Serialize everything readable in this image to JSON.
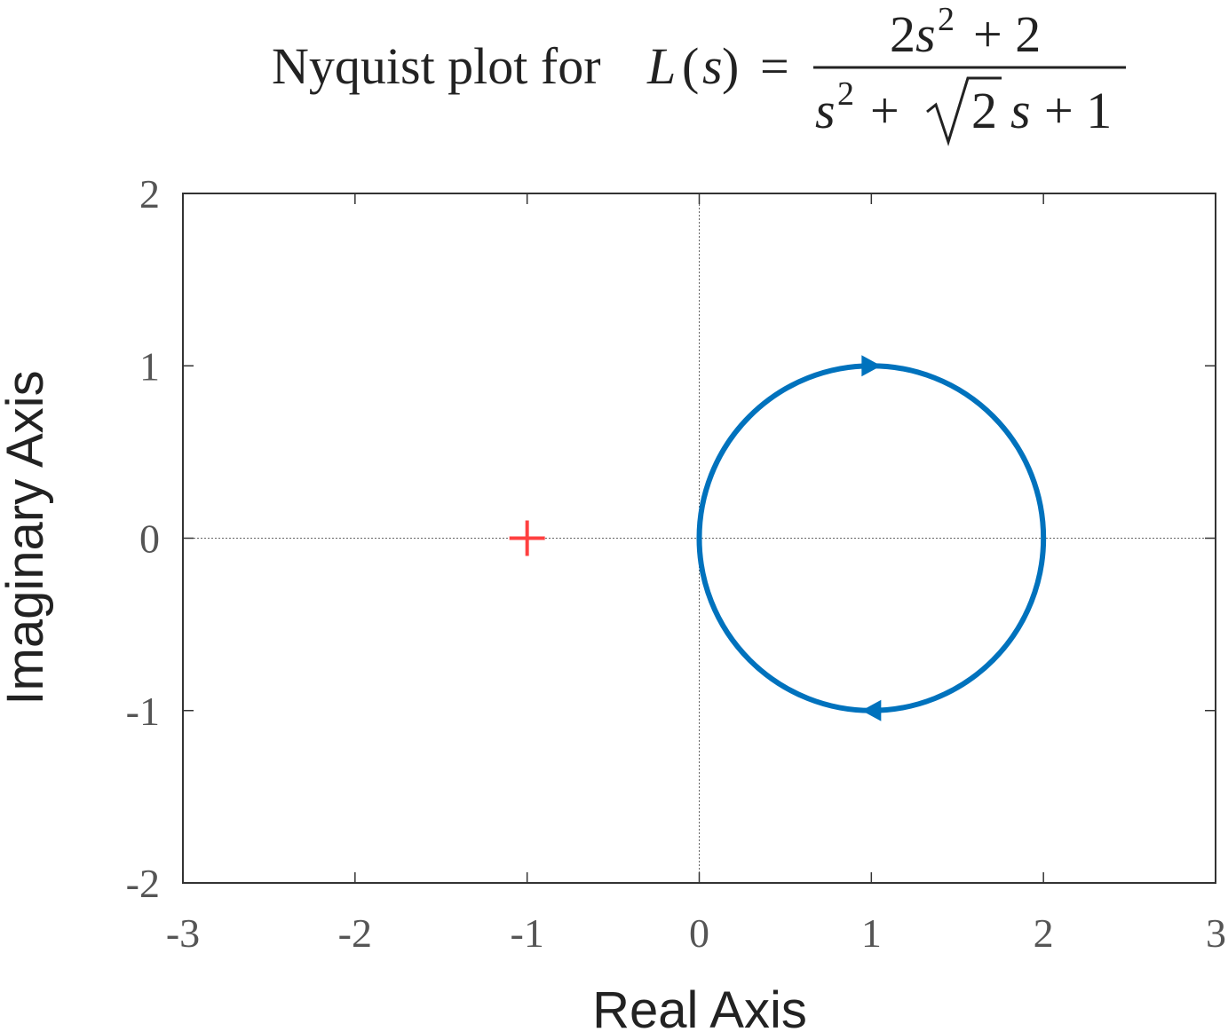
{
  "chart_data": {
    "type": "line",
    "title": {
      "prefix": "Nyquist plot for ",
      "function": "L",
      "open_paren": "(",
      "variable": "s",
      "close_paren": ")",
      "equals": "=",
      "numerator": {
        "coef": "2",
        "var": "s",
        "exp": "2",
        "rest": "+ 2"
      },
      "denominator": {
        "var": "s",
        "exp": "2",
        "plus1": "+",
        "radicand": "2",
        "var2": "s",
        "rest": "+ 1"
      }
    },
    "xlabel": "Real Axis",
    "ylabel": "Imaginary Axis",
    "xlim": [
      -3,
      3
    ],
    "ylim": [
      -2,
      2
    ],
    "xticks": [
      -3,
      -2,
      -1,
      0,
      1,
      2,
      3
    ],
    "yticks": [
      -2,
      -1,
      0,
      1,
      2
    ],
    "xtick_labels": [
      "-3",
      "-2",
      "-1",
      "0",
      "1",
      "2",
      "3"
    ],
    "ytick_labels": [
      "-2",
      "-1",
      "0",
      "1",
      "2"
    ],
    "grid": false,
    "zero_lines": true,
    "series": [
      {
        "curve": "circle",
        "center": [
          1,
          0
        ],
        "radius": 1,
        "color": "#0072BD",
        "arrows": [
          {
            "at": [
              1,
              1
            ],
            "direction": "right"
          },
          {
            "at": [
              1,
              -1
            ],
            "direction": "left"
          }
        ]
      }
    ],
    "critical_point": {
      "x": -1,
      "y": 0,
      "marker": "+",
      "color": "#FF4040"
    }
  }
}
